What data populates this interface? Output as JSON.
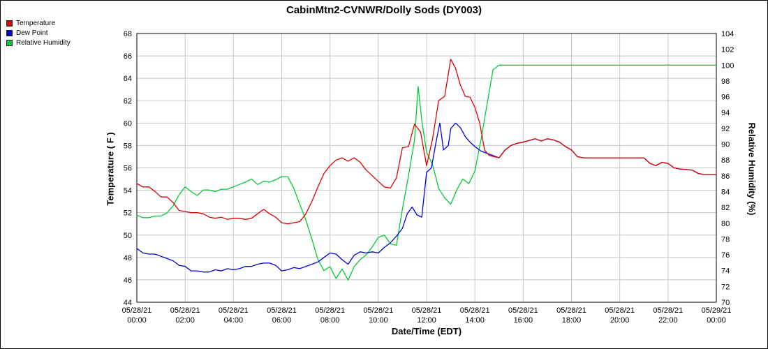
{
  "chart_data": {
    "type": "line",
    "title": "CabinMtn2-CVNWR/Dolly Sods (DY003)",
    "xlabel": "Date/Time (EDT)",
    "ylabel_left": "Temperature ( F )",
    "ylabel_right": "Relative Humidity (%)",
    "grid": true,
    "legend_position": "top-left",
    "x_range_hours": [
      0,
      24
    ],
    "ylim_left": [
      44,
      68
    ],
    "ytick_step_left": 2,
    "ylim_right": [
      70,
      104
    ],
    "ytick_step_right": 2,
    "x_ticks": [
      {
        "hour": 0,
        "line1": "05/28/21",
        "line2": "00:00"
      },
      {
        "hour": 2,
        "line1": "05/28/21",
        "line2": "02:00"
      },
      {
        "hour": 4,
        "line1": "05/28/21",
        "line2": "04:00"
      },
      {
        "hour": 6,
        "line1": "05/28/21",
        "line2": "06:00"
      },
      {
        "hour": 8,
        "line1": "05/28/21",
        "line2": "08:00"
      },
      {
        "hour": 10,
        "line1": "05/28/21",
        "line2": "10:00"
      },
      {
        "hour": 12,
        "line1": "05/28/21",
        "line2": "12:00"
      },
      {
        "hour": 14,
        "line1": "05/28/21",
        "line2": "14:00"
      },
      {
        "hour": 16,
        "line1": "05/28/21",
        "line2": "16:00"
      },
      {
        "hour": 18,
        "line1": "05/28/21",
        "line2": "18:00"
      },
      {
        "hour": 20,
        "line1": "05/28/21",
        "line2": "20:00"
      },
      {
        "hour": 22,
        "line1": "05/28/21",
        "line2": "22:00"
      },
      {
        "hour": 24,
        "line1": "05/29/21",
        "line2": "00:00"
      }
    ],
    "series": [
      {
        "name": "Temperature",
        "color": "#e00000",
        "axis": "left",
        "points": [
          [
            0,
            54.6
          ],
          [
            0.25,
            54.3
          ],
          [
            0.5,
            54.3
          ],
          [
            0.75,
            53.9
          ],
          [
            1,
            53.4
          ],
          [
            1.25,
            53.4
          ],
          [
            1.5,
            52.9
          ],
          [
            1.75,
            52.2
          ],
          [
            2,
            52.1
          ],
          [
            2.25,
            52.0
          ],
          [
            2.5,
            52.0
          ],
          [
            2.75,
            51.9
          ],
          [
            3,
            51.6
          ],
          [
            3.25,
            51.5
          ],
          [
            3.5,
            51.6
          ],
          [
            3.75,
            51.4
          ],
          [
            4,
            51.5
          ],
          [
            4.25,
            51.5
          ],
          [
            4.5,
            51.4
          ],
          [
            4.75,
            51.5
          ],
          [
            5,
            51.9
          ],
          [
            5.25,
            52.3
          ],
          [
            5.5,
            51.9
          ],
          [
            5.75,
            51.6
          ],
          [
            6,
            51.1
          ],
          [
            6.25,
            51.0
          ],
          [
            6.5,
            51.1
          ],
          [
            6.75,
            51.2
          ],
          [
            7,
            51.9
          ],
          [
            7.25,
            53.0
          ],
          [
            7.5,
            54.3
          ],
          [
            7.75,
            55.5
          ],
          [
            8,
            56.2
          ],
          [
            8.25,
            56.7
          ],
          [
            8.5,
            56.9
          ],
          [
            8.75,
            56.6
          ],
          [
            9,
            56.9
          ],
          [
            9.25,
            56.5
          ],
          [
            9.5,
            55.8
          ],
          [
            9.75,
            55.3
          ],
          [
            10,
            54.8
          ],
          [
            10.25,
            54.3
          ],
          [
            10.5,
            54.2
          ],
          [
            10.75,
            55.1
          ],
          [
            11,
            57.8
          ],
          [
            11.25,
            57.9
          ],
          [
            11.5,
            59.9
          ],
          [
            11.75,
            59.2
          ],
          [
            12,
            56.2
          ],
          [
            12.25,
            58.6
          ],
          [
            12.5,
            62.0
          ],
          [
            12.75,
            62.4
          ],
          [
            13,
            65.7
          ],
          [
            13.2,
            64.9
          ],
          [
            13.4,
            63.4
          ],
          [
            13.6,
            62.4
          ],
          [
            13.8,
            62.3
          ],
          [
            14,
            61.4
          ],
          [
            14.2,
            60.0
          ],
          [
            14.4,
            57.6
          ],
          [
            14.6,
            57.1
          ],
          [
            14.8,
            57.0
          ],
          [
            15,
            56.9
          ],
          [
            15.25,
            57.6
          ],
          [
            15.5,
            58.0
          ],
          [
            15.75,
            58.2
          ],
          [
            16,
            58.3
          ],
          [
            16.5,
            58.6
          ],
          [
            16.75,
            58.4
          ],
          [
            17,
            58.6
          ],
          [
            17.25,
            58.5
          ],
          [
            17.5,
            58.3
          ],
          [
            17.75,
            57.9
          ],
          [
            18,
            57.6
          ],
          [
            18.25,
            57.0
          ],
          [
            18.5,
            56.9
          ],
          [
            19,
            56.9
          ],
          [
            19.5,
            56.9
          ],
          [
            20,
            56.9
          ],
          [
            20.5,
            56.9
          ],
          [
            21,
            56.9
          ],
          [
            21.25,
            56.4
          ],
          [
            21.5,
            56.2
          ],
          [
            21.75,
            56.5
          ],
          [
            22,
            56.4
          ],
          [
            22.25,
            56.0
          ],
          [
            22.5,
            55.9
          ],
          [
            23,
            55.8
          ],
          [
            23.25,
            55.5
          ],
          [
            23.5,
            55.4
          ],
          [
            24,
            55.4
          ]
        ]
      },
      {
        "name": "Dew Point",
        "color": "#0000dd",
        "axis": "left",
        "points": [
          [
            0,
            48.8
          ],
          [
            0.25,
            48.4
          ],
          [
            0.5,
            48.3
          ],
          [
            0.75,
            48.3
          ],
          [
            1,
            48.1
          ],
          [
            1.25,
            47.9
          ],
          [
            1.5,
            47.7
          ],
          [
            1.75,
            47.3
          ],
          [
            2,
            47.2
          ],
          [
            2.25,
            46.8
          ],
          [
            2.5,
            46.8
          ],
          [
            2.75,
            46.7
          ],
          [
            3,
            46.7
          ],
          [
            3.25,
            46.9
          ],
          [
            3.5,
            46.8
          ],
          [
            3.75,
            47.0
          ],
          [
            4,
            46.9
          ],
          [
            4.25,
            47.0
          ],
          [
            4.5,
            47.2
          ],
          [
            4.75,
            47.2
          ],
          [
            5,
            47.4
          ],
          [
            5.25,
            47.5
          ],
          [
            5.5,
            47.5
          ],
          [
            5.75,
            47.3
          ],
          [
            6,
            46.8
          ],
          [
            6.25,
            46.9
          ],
          [
            6.5,
            47.1
          ],
          [
            6.75,
            47.0
          ],
          [
            7,
            47.2
          ],
          [
            7.25,
            47.4
          ],
          [
            7.5,
            47.6
          ],
          [
            7.75,
            48.0
          ],
          [
            8,
            48.4
          ],
          [
            8.25,
            48.3
          ],
          [
            8.5,
            47.8
          ],
          [
            8.75,
            47.4
          ],
          [
            9,
            48.2
          ],
          [
            9.25,
            48.5
          ],
          [
            9.5,
            48.4
          ],
          [
            9.75,
            48.5
          ],
          [
            10,
            48.4
          ],
          [
            10.25,
            48.9
          ],
          [
            10.5,
            49.3
          ],
          [
            10.75,
            49.9
          ],
          [
            11,
            50.6
          ],
          [
            11.2,
            51.9
          ],
          [
            11.4,
            52.5
          ],
          [
            11.6,
            51.8
          ],
          [
            11.8,
            51.6
          ],
          [
            12,
            55.6
          ],
          [
            12.2,
            56.0
          ],
          [
            12.4,
            58.4
          ],
          [
            12.55,
            60.0
          ],
          [
            12.7,
            57.6
          ],
          [
            12.9,
            58.0
          ],
          [
            13,
            59.5
          ],
          [
            13.2,
            60.0
          ],
          [
            13.4,
            59.6
          ],
          [
            13.6,
            58.8
          ],
          [
            13.8,
            58.3
          ],
          [
            14,
            57.9
          ],
          [
            14.25,
            57.5
          ],
          [
            14.5,
            57.3
          ],
          [
            14.75,
            57.1
          ],
          [
            15,
            56.9
          ],
          [
            15.25,
            57.6
          ],
          [
            15.5,
            58.0
          ],
          [
            15.75,
            58.2
          ],
          [
            16,
            58.3
          ],
          [
            16.5,
            58.6
          ],
          [
            16.75,
            58.4
          ],
          [
            17,
            58.6
          ],
          [
            17.25,
            58.5
          ],
          [
            17.5,
            58.3
          ],
          [
            17.75,
            57.9
          ],
          [
            18,
            57.6
          ],
          [
            18.25,
            57.0
          ],
          [
            18.5,
            56.9
          ],
          [
            19,
            56.9
          ],
          [
            19.5,
            56.9
          ],
          [
            20,
            56.9
          ],
          [
            20.5,
            56.9
          ],
          [
            21,
            56.9
          ],
          [
            21.25,
            56.4
          ],
          [
            21.5,
            56.2
          ],
          [
            21.75,
            56.5
          ],
          [
            22,
            56.4
          ],
          [
            22.25,
            56.0
          ],
          [
            22.5,
            55.9
          ],
          [
            23,
            55.8
          ],
          [
            23.25,
            55.5
          ],
          [
            23.5,
            55.4
          ],
          [
            24,
            55.4
          ]
        ]
      },
      {
        "name": "Relative Humidity",
        "color": "#00cc33",
        "axis": "right",
        "points": [
          [
            0,
            81.0
          ],
          [
            0.25,
            80.7
          ],
          [
            0.5,
            80.7
          ],
          [
            0.75,
            80.9
          ],
          [
            1,
            80.9
          ],
          [
            1.25,
            81.3
          ],
          [
            1.5,
            82.2
          ],
          [
            1.75,
            83.6
          ],
          [
            2,
            84.6
          ],
          [
            2.25,
            84.0
          ],
          [
            2.5,
            83.5
          ],
          [
            2.75,
            84.2
          ],
          [
            3,
            84.2
          ],
          [
            3.25,
            84.0
          ],
          [
            3.5,
            84.3
          ],
          [
            3.75,
            84.3
          ],
          [
            4,
            84.6
          ],
          [
            4.25,
            84.9
          ],
          [
            4.5,
            85.2
          ],
          [
            4.75,
            85.6
          ],
          [
            5,
            84.9
          ],
          [
            5.25,
            85.3
          ],
          [
            5.5,
            85.2
          ],
          [
            5.75,
            85.5
          ],
          [
            6,
            85.9
          ],
          [
            6.25,
            85.9
          ],
          [
            6.5,
            84.4
          ],
          [
            6.75,
            82.4
          ],
          [
            7,
            80.4
          ],
          [
            7.25,
            78.0
          ],
          [
            7.5,
            75.4
          ],
          [
            7.75,
            74.0
          ],
          [
            8,
            74.5
          ],
          [
            8.25,
            73.0
          ],
          [
            8.5,
            74.2
          ],
          [
            8.75,
            72.8
          ],
          [
            9,
            74.5
          ],
          [
            9.25,
            75.4
          ],
          [
            9.5,
            76.0
          ],
          [
            9.75,
            77.0
          ],
          [
            10,
            78.2
          ],
          [
            10.25,
            78.5
          ],
          [
            10.5,
            77.4
          ],
          [
            10.75,
            77.2
          ],
          [
            11,
            81.8
          ],
          [
            11.25,
            86.0
          ],
          [
            11.5,
            90.5
          ],
          [
            11.65,
            97.3
          ],
          [
            11.8,
            93.0
          ],
          [
            12,
            89.0
          ],
          [
            12.25,
            87.4
          ],
          [
            12.5,
            84.4
          ],
          [
            12.75,
            83.2
          ],
          [
            13,
            82.4
          ],
          [
            13.25,
            84.2
          ],
          [
            13.5,
            85.6
          ],
          [
            13.75,
            85.0
          ],
          [
            14,
            86.6
          ],
          [
            14.25,
            90.5
          ],
          [
            14.5,
            95.0
          ],
          [
            14.75,
            99.4
          ],
          [
            15,
            100
          ],
          [
            16,
            100
          ],
          [
            17,
            100
          ],
          [
            18,
            100
          ],
          [
            19,
            100
          ],
          [
            20,
            100
          ],
          [
            21,
            100
          ],
          [
            22,
            100
          ],
          [
            23,
            100
          ],
          [
            24,
            100
          ]
        ]
      }
    ]
  }
}
